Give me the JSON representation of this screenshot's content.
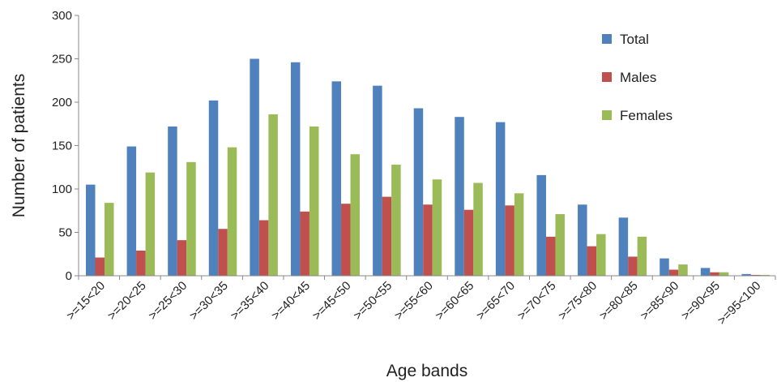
{
  "chart_data": {
    "type": "bar",
    "title": "",
    "xlabel": "Age bands",
    "ylabel": "Number of patients",
    "ylim": [
      0,
      300
    ],
    "yticks": [
      0,
      50,
      100,
      150,
      200,
      250,
      300
    ],
    "grid": false,
    "legend_position": "top-right",
    "categories": [
      ">=15<20",
      ">=20<25",
      ">=25<30",
      ">=30<35",
      ">=35<40",
      ">=40<45",
      ">=45<50",
      ">=50<55",
      ">=55<60",
      ">=60<65",
      ">=65<70",
      ">=70<75",
      ">=75<80",
      ">=80<85",
      ">=85<90",
      ">=90<95",
      ">=95<100"
    ],
    "series": [
      {
        "name": "Total",
        "color": "#4F81BD",
        "values": [
          105,
          149,
          172,
          202,
          250,
          246,
          224,
          219,
          193,
          183,
          177,
          116,
          82,
          67,
          20,
          9,
          2
        ]
      },
      {
        "name": "Males",
        "color": "#C0504D",
        "values": [
          21,
          29,
          41,
          54,
          64,
          74,
          83,
          91,
          82,
          76,
          81,
          45,
          34,
          22,
          7,
          4,
          1
        ]
      },
      {
        "name": "Females",
        "color": "#9BBB59",
        "values": [
          84,
          119,
          131,
          148,
          186,
          172,
          140,
          128,
          111,
          107,
          95,
          71,
          48,
          45,
          13,
          4,
          1
        ]
      }
    ]
  }
}
